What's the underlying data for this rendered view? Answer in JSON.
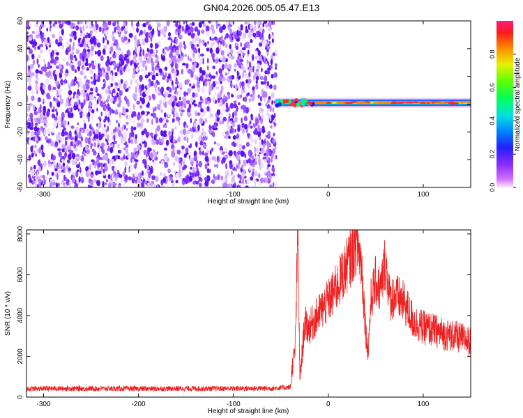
{
  "title": "GN04.2026.005.05.47.E13",
  "colors": {
    "snr_line": "#ee2222",
    "noise_purple": "#7a2bff",
    "signal_center": "#ff2a2a"
  },
  "chart_data": [
    {
      "type": "heatmap",
      "xlabel": "Height of straight line (km)",
      "ylabel": "Frequency (Hz)",
      "xlim": [
        -318,
        150
      ],
      "ylim": [
        -60,
        60
      ],
      "x_ticks": [
        -300,
        -200,
        -100,
        0,
        100
      ],
      "y_ticks": [
        -60,
        -40,
        -20,
        0,
        20,
        40,
        60
      ],
      "grid": false,
      "signal_onset_km": -55,
      "signal_center_hz": 1,
      "colorbar": {
        "label": "Normalized spectral amplitude",
        "range": [
          0,
          1
        ],
        "ticks": [
          0.0,
          0.2,
          0.4,
          0.6,
          0.8
        ],
        "colormap": "rainbow (magenta-blue-cyan-green-yellow-red)"
      }
    },
    {
      "type": "line",
      "xlabel": "Height of straight line (km)",
      "ylabel": "SNR (10 * v/v)",
      "xlim": [
        -318,
        150
      ],
      "ylim": [
        0,
        8200
      ],
      "x_ticks": [
        -300,
        -200,
        -100,
        0,
        100
      ],
      "y_ticks": [
        0,
        2000,
        4000,
        6000,
        8000
      ],
      "grid": false,
      "series": [
        {
          "x": [
            -318,
            -300,
            -250,
            -200,
            -150,
            -100,
            -60,
            -40,
            -38,
            -35,
            -32,
            -30,
            -25,
            -20,
            -10,
            0,
            10,
            20,
            25,
            30,
            35,
            40,
            42,
            45,
            50,
            55,
            60,
            65,
            70,
            80,
            90,
            100,
            110,
            120,
            130,
            140,
            150
          ],
          "y": [
            400,
            420,
            420,
            410,
            420,
            420,
            430,
            480,
            1500,
            2300,
            8100,
            800,
            3600,
            3400,
            4100,
            4700,
            5500,
            6500,
            7000,
            7700,
            6500,
            2900,
            2300,
            4800,
            5700,
            5200,
            6700,
            4800,
            5000,
            4600,
            3700,
            3400,
            3300,
            3100,
            3000,
            2900,
            2700
          ]
        }
      ]
    }
  ]
}
